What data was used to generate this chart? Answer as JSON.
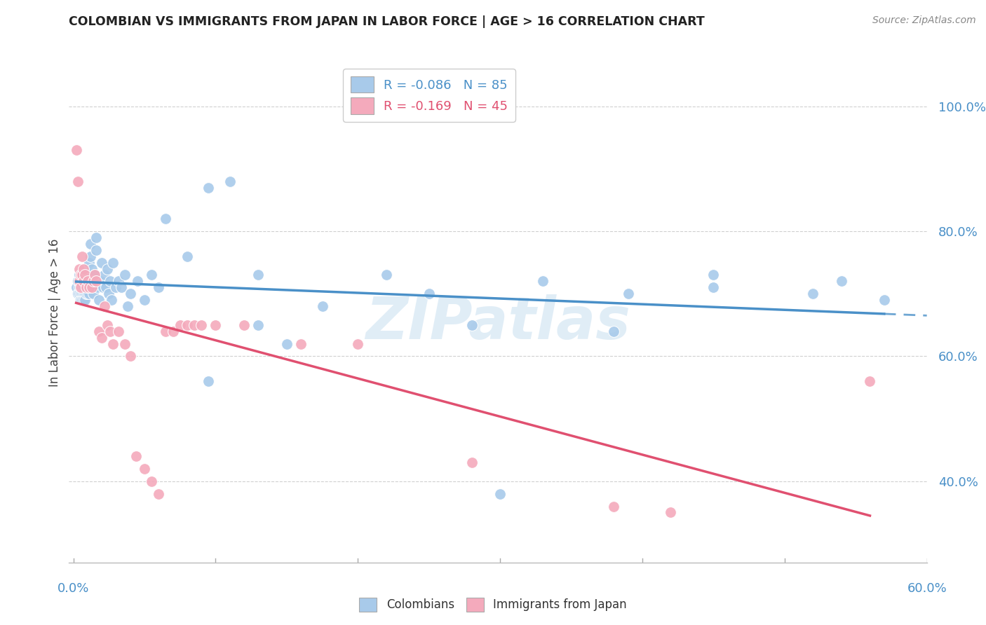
{
  "title": "COLOMBIAN VS IMMIGRANTS FROM JAPAN IN LABOR FORCE | AGE > 16 CORRELATION CHART",
  "source": "Source: ZipAtlas.com",
  "ylabel": "In Labor Force | Age > 16",
  "xlim": [
    -0.003,
    0.6
  ],
  "ylim": [
    0.27,
    1.07
  ],
  "blue_color": "#A8CAEA",
  "pink_color": "#F4AABC",
  "blue_line_color": "#4A90C8",
  "pink_line_color": "#E05070",
  "blue_R": -0.086,
  "blue_N": 85,
  "pink_R": -0.169,
  "pink_N": 45,
  "watermark": "ZIPatlas",
  "background_color": "#ffffff",
  "grid_color": "#d0d0d0",
  "legend_label_blue": "Colombians",
  "legend_label_pink": "Immigrants from Japan",
  "blue_scatter_x": [
    0.002,
    0.003,
    0.003,
    0.004,
    0.004,
    0.004,
    0.005,
    0.005,
    0.005,
    0.005,
    0.006,
    0.006,
    0.006,
    0.006,
    0.006,
    0.007,
    0.007,
    0.007,
    0.007,
    0.008,
    0.008,
    0.008,
    0.008,
    0.009,
    0.009,
    0.009,
    0.01,
    0.01,
    0.01,
    0.01,
    0.011,
    0.011,
    0.011,
    0.012,
    0.012,
    0.013,
    0.013,
    0.014,
    0.014,
    0.015,
    0.016,
    0.016,
    0.017,
    0.018,
    0.019,
    0.02,
    0.021,
    0.022,
    0.023,
    0.024,
    0.025,
    0.026,
    0.027,
    0.028,
    0.03,
    0.032,
    0.034,
    0.036,
    0.038,
    0.04,
    0.045,
    0.05,
    0.055,
    0.06,
    0.065,
    0.08,
    0.095,
    0.11,
    0.13,
    0.15,
    0.175,
    0.22,
    0.28,
    0.33,
    0.39,
    0.45,
    0.52,
    0.54,
    0.57,
    0.13,
    0.095,
    0.3,
    0.45,
    0.38,
    0.25
  ],
  "blue_scatter_y": [
    0.71,
    0.72,
    0.7,
    0.71,
    0.73,
    0.7,
    0.71,
    0.72,
    0.7,
    0.69,
    0.72,
    0.7,
    0.71,
    0.72,
    0.69,
    0.73,
    0.71,
    0.7,
    0.69,
    0.71,
    0.73,
    0.7,
    0.69,
    0.74,
    0.71,
    0.7,
    0.72,
    0.73,
    0.71,
    0.7,
    0.75,
    0.72,
    0.7,
    0.78,
    0.76,
    0.73,
    0.74,
    0.72,
    0.7,
    0.73,
    0.79,
    0.77,
    0.71,
    0.69,
    0.72,
    0.75,
    0.71,
    0.73,
    0.71,
    0.74,
    0.7,
    0.72,
    0.69,
    0.75,
    0.71,
    0.72,
    0.71,
    0.73,
    0.68,
    0.7,
    0.72,
    0.69,
    0.73,
    0.71,
    0.82,
    0.76,
    0.87,
    0.88,
    0.73,
    0.62,
    0.68,
    0.73,
    0.65,
    0.72,
    0.7,
    0.71,
    0.7,
    0.72,
    0.69,
    0.65,
    0.56,
    0.38,
    0.73,
    0.64,
    0.7
  ],
  "pink_scatter_x": [
    0.002,
    0.003,
    0.004,
    0.004,
    0.005,
    0.005,
    0.006,
    0.006,
    0.007,
    0.007,
    0.008,
    0.009,
    0.01,
    0.011,
    0.013,
    0.014,
    0.015,
    0.016,
    0.018,
    0.02,
    0.022,
    0.024,
    0.026,
    0.028,
    0.032,
    0.036,
    0.04,
    0.044,
    0.05,
    0.055,
    0.06,
    0.065,
    0.07,
    0.075,
    0.08,
    0.085,
    0.09,
    0.1,
    0.12,
    0.16,
    0.2,
    0.28,
    0.38,
    0.42,
    0.56
  ],
  "pink_scatter_y": [
    0.93,
    0.88,
    0.74,
    0.72,
    0.73,
    0.71,
    0.76,
    0.73,
    0.74,
    0.72,
    0.73,
    0.71,
    0.72,
    0.71,
    0.71,
    0.72,
    0.73,
    0.72,
    0.64,
    0.63,
    0.68,
    0.65,
    0.64,
    0.62,
    0.64,
    0.62,
    0.6,
    0.44,
    0.42,
    0.4,
    0.38,
    0.64,
    0.64,
    0.65,
    0.65,
    0.65,
    0.65,
    0.65,
    0.65,
    0.62,
    0.62,
    0.43,
    0.36,
    0.35,
    0.56
  ],
  "ytick_positions": [
    0.4,
    0.6,
    0.8,
    1.0
  ],
  "ytick_labels": [
    "40.0%",
    "60.0%",
    "80.0%",
    "100.0%"
  ],
  "xtick_positions": [
    0.0,
    0.1,
    0.2,
    0.3,
    0.4,
    0.5,
    0.6
  ],
  "xtick_labels": [
    "0.0%",
    "",
    "",
    "",
    "",
    "",
    "60.0%"
  ]
}
